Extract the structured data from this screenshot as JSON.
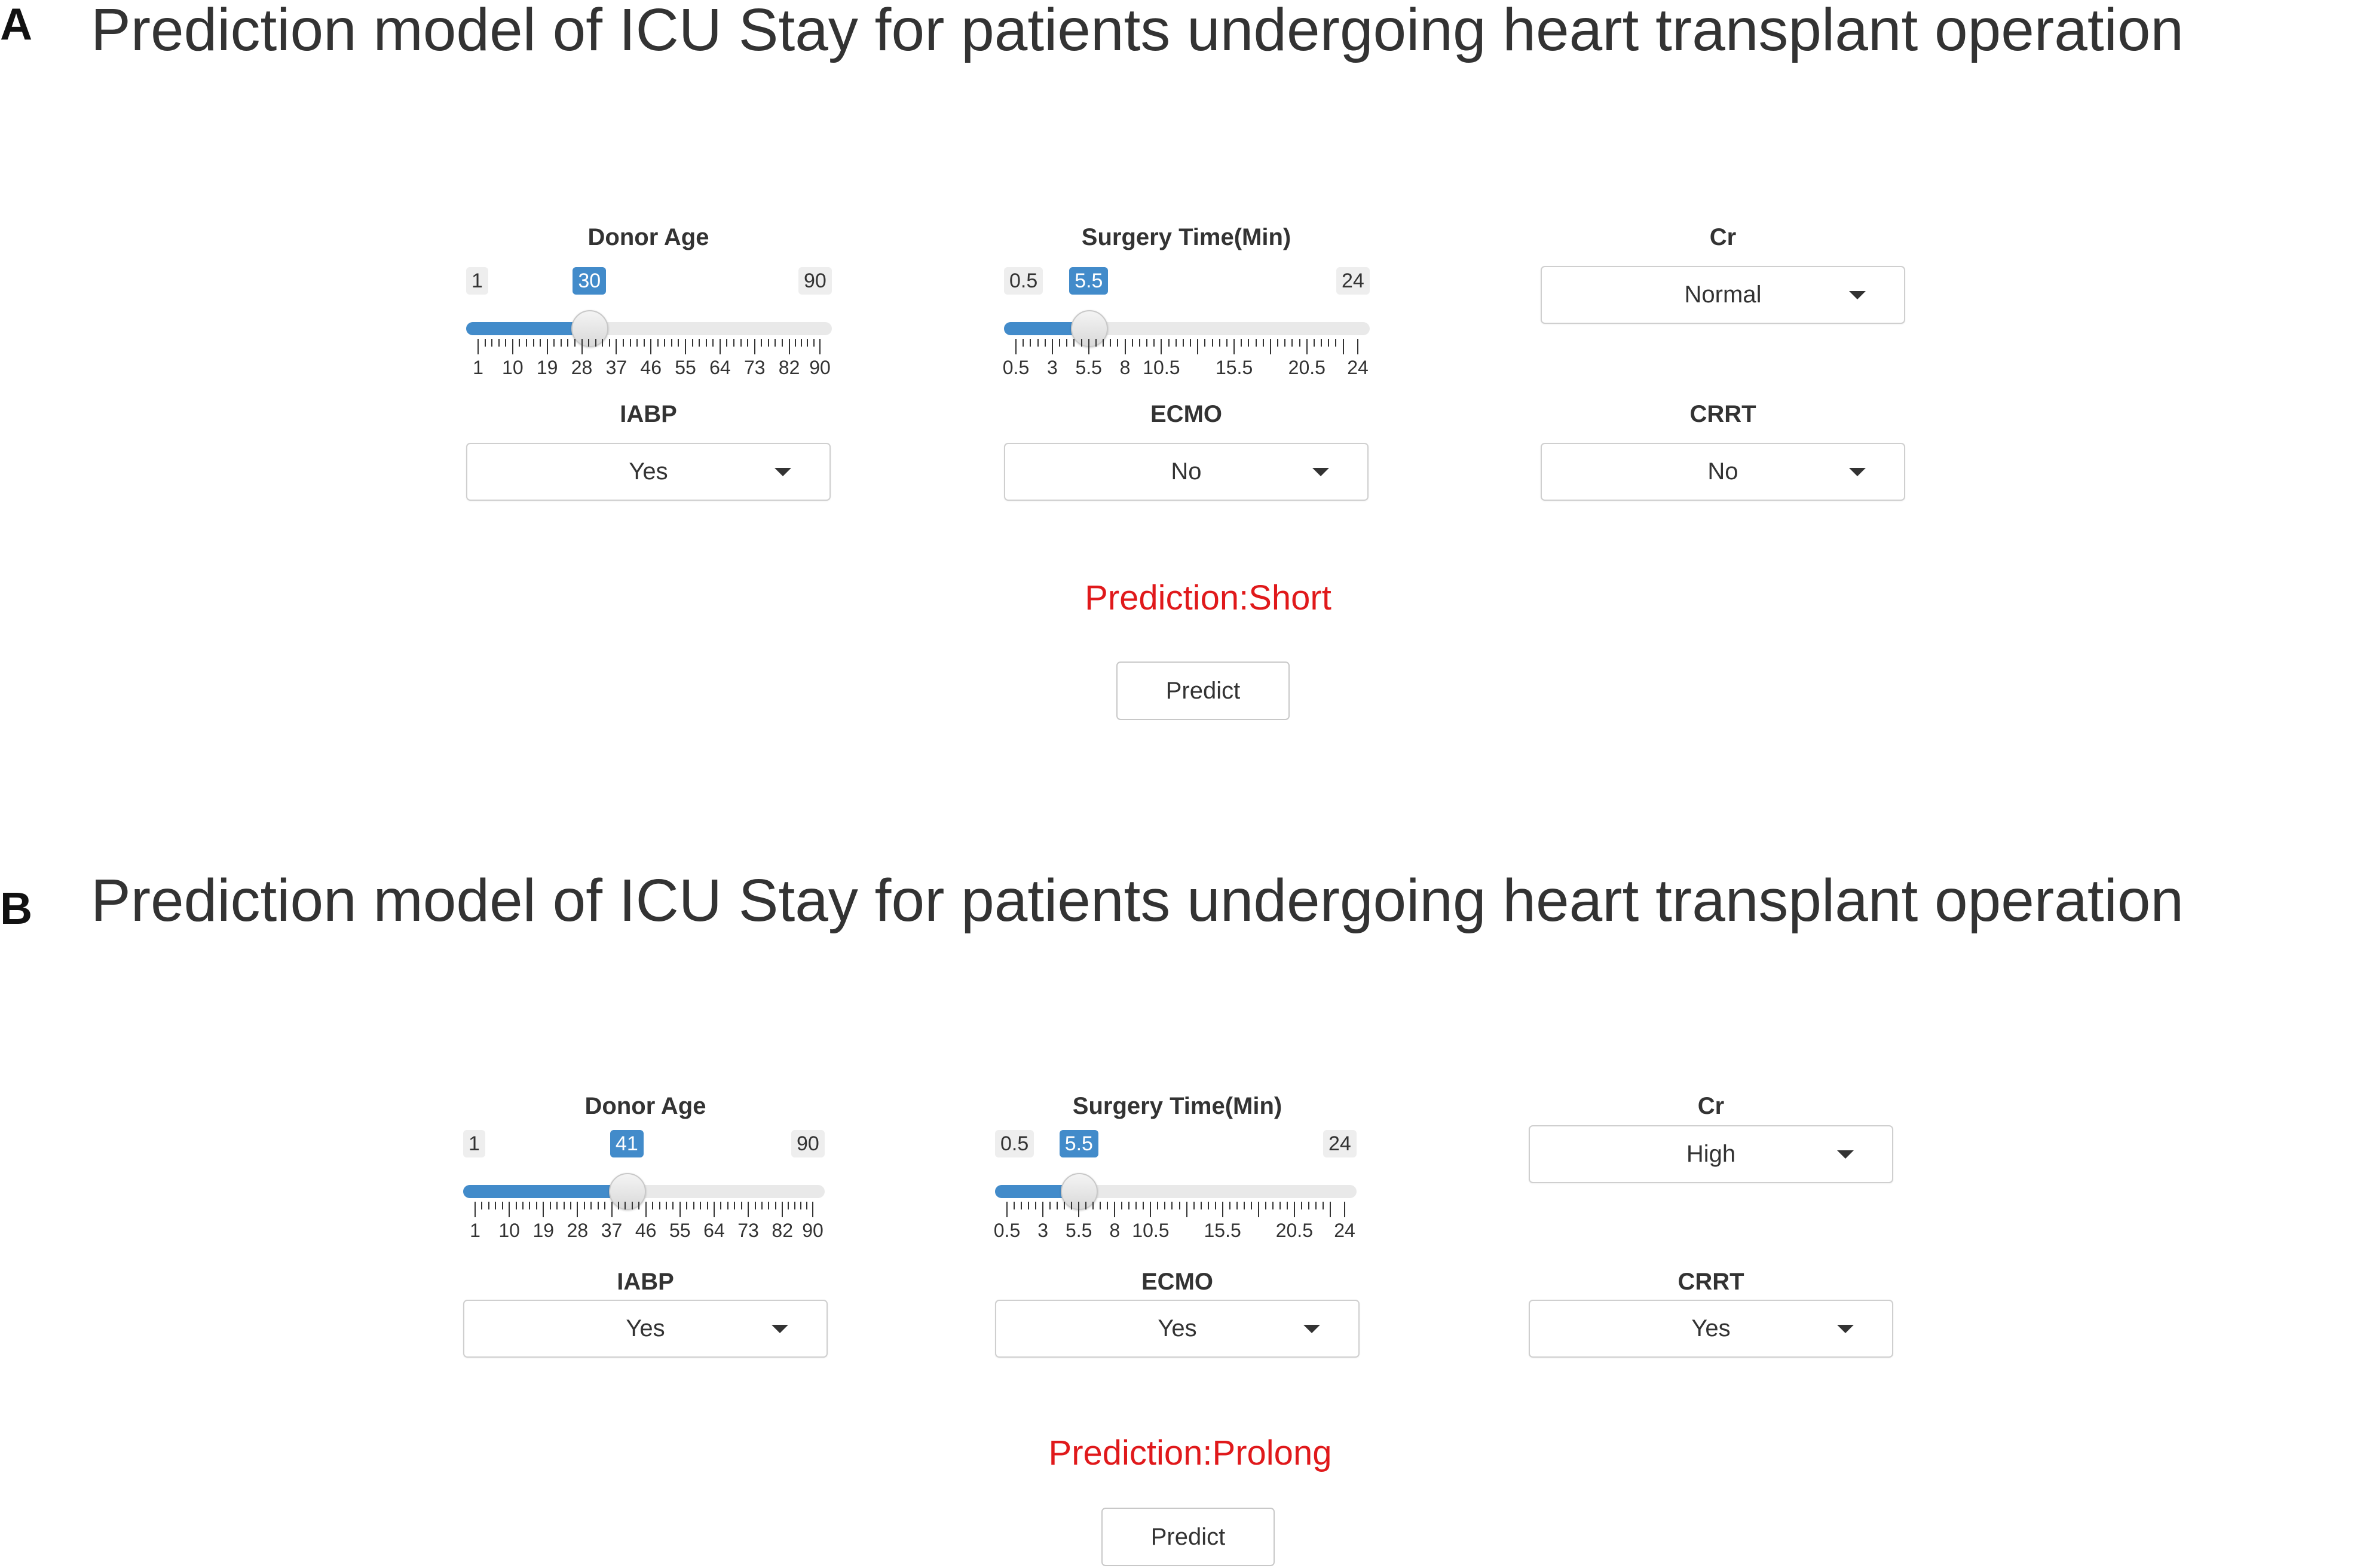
{
  "panels": [
    {
      "letter": "A",
      "title": "Prediction model of ICU Stay for patients undergoing heart transplant operation",
      "donor_age": {
        "label": "Donor Age",
        "min": "1",
        "max": "90",
        "value": "30",
        "ticks": [
          "1",
          "10",
          "19",
          "28",
          "37",
          "46",
          "55",
          "64",
          "73",
          "82",
          "90"
        ]
      },
      "surgery_time": {
        "label": "Surgery Time(Min)",
        "min": "0.5",
        "max": "24",
        "value": "5.5",
        "ticks": [
          "0.5",
          "3",
          "5.5",
          "8",
          "10.5",
          "15.5",
          "20.5",
          "24"
        ]
      },
      "cr": {
        "label": "Cr",
        "value": "Normal"
      },
      "iabp": {
        "label": "IABP",
        "value": "Yes"
      },
      "ecmo": {
        "label": "ECMO",
        "value": "No"
      },
      "crrt": {
        "label": "CRRT",
        "value": "No"
      },
      "prediction": "Prediction:Short",
      "predict_button": "Predict"
    },
    {
      "letter": "B",
      "title": "Prediction model of ICU Stay for patients undergoing heart transplant operation",
      "donor_age": {
        "label": "Donor Age",
        "min": "1",
        "max": "90",
        "value": "41",
        "ticks": [
          "1",
          "10",
          "19",
          "28",
          "37",
          "46",
          "55",
          "64",
          "73",
          "82",
          "90"
        ]
      },
      "surgery_time": {
        "label": "Surgery Time(Min)",
        "min": "0.5",
        "max": "24",
        "value": "5.5",
        "ticks": [
          "0.5",
          "3",
          "5.5",
          "8",
          "10.5",
          "15.5",
          "20.5",
          "24"
        ]
      },
      "cr": {
        "label": "Cr",
        "value": "High"
      },
      "iabp": {
        "label": "IABP",
        "value": "Yes"
      },
      "ecmo": {
        "label": "ECMO",
        "value": "Yes"
      },
      "crrt": {
        "label": "CRRT",
        "value": "Yes"
      },
      "prediction": "Prediction:Prolong",
      "predict_button": "Predict"
    }
  ],
  "colors": {
    "accent": "#428bca",
    "prediction_text": "#e0191b"
  },
  "icons": {
    "select_caret": "caret-down-icon",
    "slider_handle": "slider-handle"
  }
}
